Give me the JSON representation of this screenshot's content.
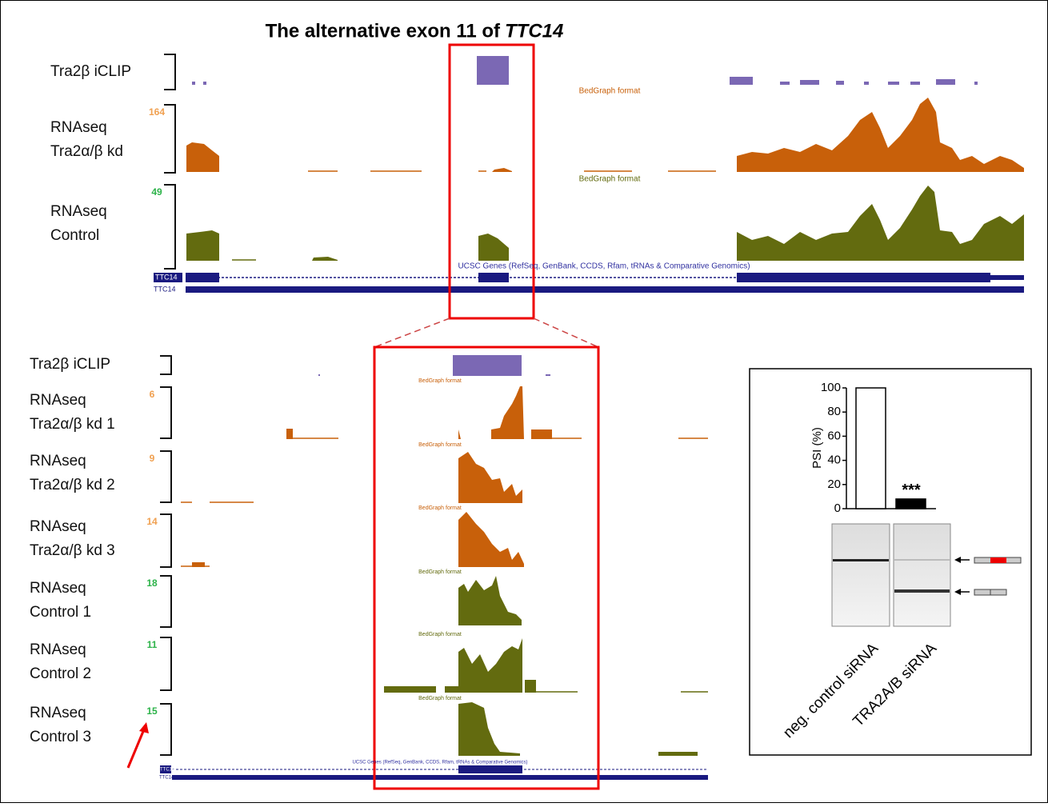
{
  "title": "The alternative exon 11 of",
  "title_gene": "TTC14",
  "overview": {
    "tracks": [
      {
        "label": [
          "Tra2β iCLIP"
        ]
      },
      {
        "label": [
          "RNAseq",
          "Tra2α/β kd"
        ],
        "scale": 164
      },
      {
        "label": [
          "RNAseq",
          "Control"
        ],
        "scale": 49
      }
    ],
    "format_labels": [
      "BedGraph format",
      "BedGraph format"
    ],
    "gene_track": "UCSC Genes (RefSeq, GenBank, CCDS, Rfam, tRNAs & Comparative Genomics)",
    "genes": [
      "TTC14",
      "TTC14"
    ]
  },
  "zoom": {
    "tracks": [
      {
        "label": [
          "Tra2β iCLIP"
        ]
      },
      {
        "label": [
          "RNAseq",
          "Tra2α/β kd 1"
        ],
        "scale": 6
      },
      {
        "label": [
          "RNAseq",
          "Tra2α/β kd 2"
        ],
        "scale": 9
      },
      {
        "label": [
          "RNAseq",
          "Tra2α/β kd 3"
        ],
        "scale": 14
      },
      {
        "label": [
          "RNAseq",
          "Control 1"
        ],
        "scale": 18
      },
      {
        "label": [
          "RNAseq",
          "Control 2"
        ],
        "scale": 11
      },
      {
        "label": [
          "RNAseq",
          "Control 3"
        ],
        "scale": 15
      }
    ],
    "format_labels": [
      "BedGraph format",
      "BedGraph format",
      "BedGraph format",
      "BedGraph format",
      "BedGraph format",
      "BedGraph format"
    ],
    "gene_track": "UCSC Genes (RefSeq, GenBank, CCDS, Rfam, tRNAs & Comparative Genomics)",
    "genes": [
      "TTC14",
      "TTC14"
    ]
  },
  "chart_data": {
    "type": "bar",
    "categories": [
      "neg. control siRNA",
      "TRA2A/B siRNA"
    ],
    "values": [
      100,
      8
    ],
    "colors": [
      "#ffffff",
      "#000000"
    ],
    "y_label": "PSI (%)",
    "ylim": [
      0,
      100
    ],
    "yticks": [
      0,
      20,
      40,
      60,
      80,
      100
    ],
    "annotation": "***"
  }
}
